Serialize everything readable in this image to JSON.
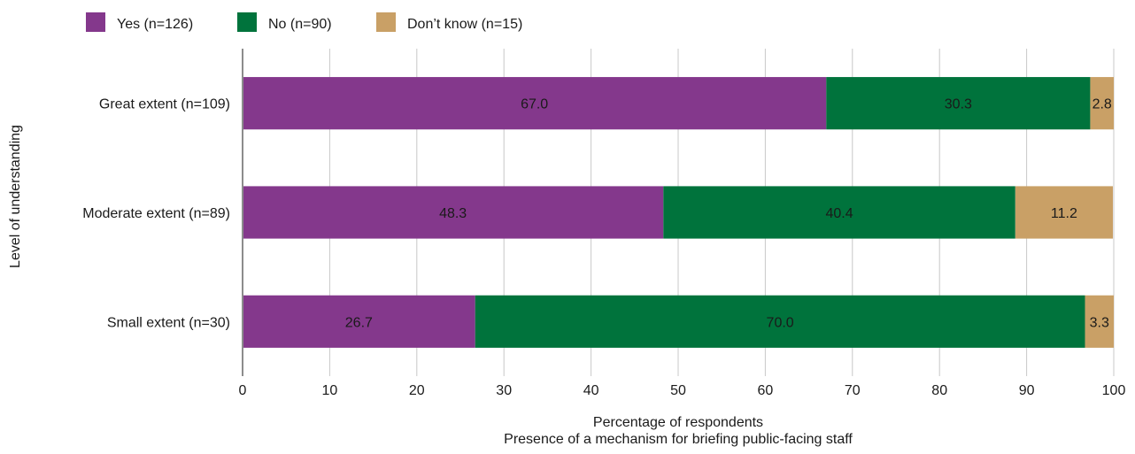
{
  "chart_data": {
    "type": "bar",
    "orientation": "horizontal",
    "stacked": true,
    "xlabel": "Percentage of respondents",
    "subtitle": "Presence of a mechanism for briefing public-facing staff",
    "ylabel": "Level of understanding",
    "xlim": [
      0,
      100
    ],
    "xticks": [
      0,
      10,
      20,
      30,
      40,
      50,
      60,
      70,
      80,
      90,
      100
    ],
    "grid": "vertical",
    "legend_position": "top-left",
    "categories": [
      "Great extent (n=109)",
      "Moderate extent (n=89)",
      "Small extent (n=30)"
    ],
    "series": [
      {
        "name": "Yes (n=126)",
        "color": "#84388c",
        "values": [
          67.0,
          48.3,
          26.7
        ]
      },
      {
        "name": "No (n=90)",
        "color": "#00733c",
        "values": [
          30.3,
          40.4,
          70.0
        ]
      },
      {
        "name": "Don’t know (n=15)",
        "color": "#c9a066",
        "values": [
          2.8,
          11.2,
          3.3
        ]
      }
    ]
  }
}
